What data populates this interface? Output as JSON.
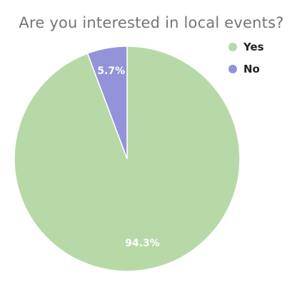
{
  "chart_data": {
    "type": "pie",
    "title": "Are you interested in local events?",
    "categories": [
      "Yes",
      "No"
    ],
    "values": [
      94.3,
      5.7
    ],
    "data_labels": [
      "94.3%",
      "5.7%"
    ],
    "colors": [
      "#b7d9a8",
      "#9393da"
    ],
    "legend": "top-right",
    "start_angle": "12 o'clock, counterclockwise: No slice first"
  }
}
